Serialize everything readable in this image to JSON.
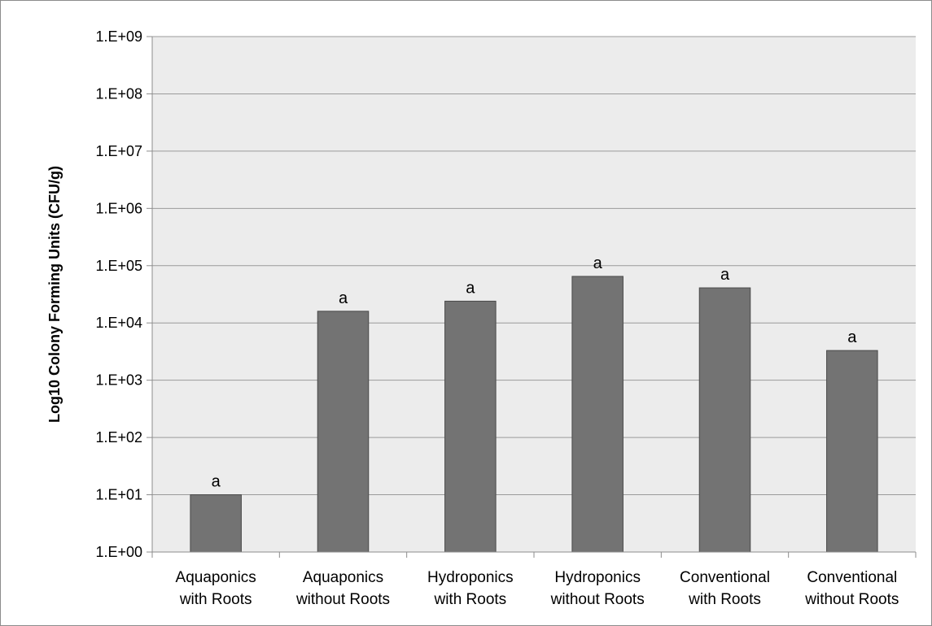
{
  "chart_data": {
    "type": "bar",
    "title": "",
    "xlabel": "",
    "ylabel": "Log10 Colony Forming Units (CFU/g)",
    "y_scale": "log",
    "ylim": [
      1,
      1000000000
    ],
    "y_ticks": [
      1,
      10,
      100,
      1000,
      10000,
      100000,
      1000000,
      10000000,
      100000000,
      1000000000
    ],
    "y_tick_labels": [
      "1.E+00",
      "1.E+01",
      "1.E+02",
      "1.E+03",
      "1.E+04",
      "1.E+05",
      "1.E+06",
      "1.E+07",
      "1.E+08",
      "1.E+09"
    ],
    "categories": [
      [
        "Aquaponics",
        "with Roots"
      ],
      [
        "Aquaponics",
        "without Roots"
      ],
      [
        "Hydroponics",
        "with Roots"
      ],
      [
        "Hydroponics",
        "without Roots"
      ],
      [
        "Conventional",
        "with Roots"
      ],
      [
        "Conventional",
        "without Roots"
      ]
    ],
    "values": [
      10,
      16000,
      24000,
      65000,
      41000,
      3300
    ],
    "data_labels": [
      "a",
      "a",
      "a",
      "a",
      "a",
      "a"
    ],
    "grid": true,
    "legend": "none",
    "colors": {
      "plot_background": "#ececec",
      "bar_fill": "#737373",
      "bar_stroke": "#4a4a4a",
      "gridline": "#9a9a9a",
      "axis": "#8c8c8c",
      "border": "#8c8c8c"
    }
  }
}
